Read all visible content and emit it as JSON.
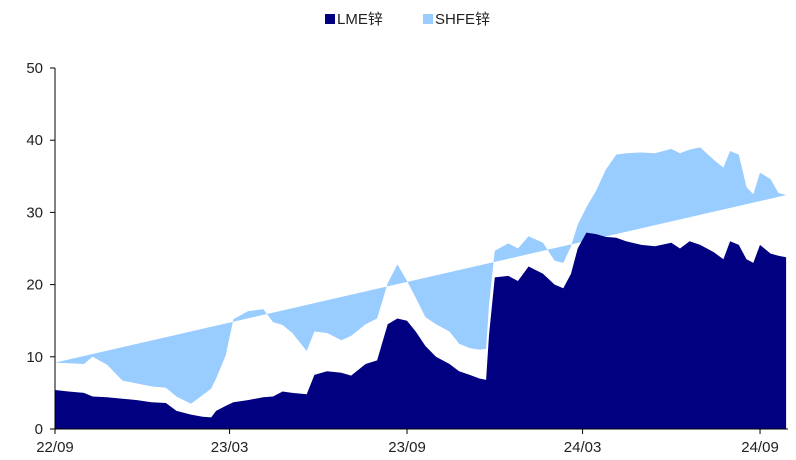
{
  "chart_data": {
    "type": "area",
    "stacked": true,
    "title": "",
    "xlabel": "",
    "ylabel": "",
    "ylim": [
      0,
      50
    ],
    "yticks": [
      0,
      10,
      20,
      30,
      40,
      50
    ],
    "xlim": [
      "2022-09-01",
      "2024-09-30"
    ],
    "xticks": [
      {
        "label": "22/09",
        "date": "2022-09-01"
      },
      {
        "label": "23/03",
        "date": "2023-03-01"
      },
      {
        "label": "23/09",
        "date": "2023-09-01"
      },
      {
        "label": "24/03",
        "date": "2024-03-01"
      },
      {
        "label": "24/09",
        "date": "2024-09-01"
      }
    ],
    "grid": false,
    "legend_position": "top-center",
    "series": [
      {
        "name": "LME锌",
        "color": "#000080",
        "points": [
          [
            "2022-09-01",
            5.4
          ],
          [
            "2022-09-15",
            5.2
          ],
          [
            "2022-10-01",
            5.0
          ],
          [
            "2022-10-10",
            4.5
          ],
          [
            "2022-10-25",
            4.4
          ],
          [
            "2022-11-10",
            4.2
          ],
          [
            "2022-11-25",
            4.0
          ],
          [
            "2022-12-10",
            3.7
          ],
          [
            "2022-12-25",
            3.6
          ],
          [
            "2023-01-05",
            2.5
          ],
          [
            "2023-01-20",
            2.0
          ],
          [
            "2023-02-01",
            1.7
          ],
          [
            "2023-02-10",
            1.6
          ],
          [
            "2023-02-15",
            2.5
          ],
          [
            "2023-02-25",
            3.2
          ],
          [
            "2023-03-05",
            3.7
          ],
          [
            "2023-03-20",
            4.0
          ],
          [
            "2023-04-05",
            4.4
          ],
          [
            "2023-04-15",
            4.5
          ],
          [
            "2023-04-25",
            5.2
          ],
          [
            "2023-05-05",
            5.0
          ],
          [
            "2023-05-20",
            4.8
          ],
          [
            "2023-05-28",
            7.5
          ],
          [
            "2023-06-10",
            8.0
          ],
          [
            "2023-06-25",
            7.8
          ],
          [
            "2023-07-05",
            7.4
          ],
          [
            "2023-07-20",
            9.0
          ],
          [
            "2023-08-01",
            9.5
          ],
          [
            "2023-08-12",
            14.5
          ],
          [
            "2023-08-22",
            15.3
          ],
          [
            "2023-09-01",
            15.0
          ],
          [
            "2023-09-10",
            13.5
          ],
          [
            "2023-09-20",
            11.5
          ],
          [
            "2023-10-01",
            10.0
          ],
          [
            "2023-10-15",
            9.0
          ],
          [
            "2023-10-25",
            8.0
          ],
          [
            "2023-11-05",
            7.5
          ],
          [
            "2023-11-15",
            7.0
          ],
          [
            "2023-11-22",
            6.8
          ],
          [
            "2023-11-25",
            13.0
          ],
          [
            "2023-12-01",
            21.0
          ],
          [
            "2023-12-15",
            21.2
          ],
          [
            "2023-12-25",
            20.5
          ],
          [
            "2024-01-05",
            22.5
          ],
          [
            "2024-01-20",
            21.5
          ],
          [
            "2024-02-01",
            20.0
          ],
          [
            "2024-02-10",
            19.5
          ],
          [
            "2024-02-18",
            21.5
          ],
          [
            "2024-02-25",
            25.0
          ],
          [
            "2024-03-05",
            27.2
          ],
          [
            "2024-03-15",
            27.0
          ],
          [
            "2024-03-25",
            26.6
          ],
          [
            "2024-04-05",
            26.5
          ],
          [
            "2024-04-15",
            26.0
          ],
          [
            "2024-05-01",
            25.5
          ],
          [
            "2024-05-15",
            25.3
          ],
          [
            "2024-06-01",
            25.8
          ],
          [
            "2024-06-10",
            25.0
          ],
          [
            "2024-06-20",
            26.0
          ],
          [
            "2024-07-01",
            25.5
          ],
          [
            "2024-07-15",
            24.5
          ],
          [
            "2024-07-25",
            23.5
          ],
          [
            "2024-08-01",
            26.0
          ],
          [
            "2024-08-10",
            25.5
          ],
          [
            "2024-08-18",
            23.5
          ],
          [
            "2024-08-25",
            23.0
          ],
          [
            "2024-09-01",
            25.5
          ],
          [
            "2024-09-12",
            24.3
          ],
          [
            "2024-09-20",
            24.0
          ],
          [
            "2024-09-28",
            23.8
          ]
        ]
      },
      {
        "name": "SHFE锌",
        "color": "#99ccff",
        "points": [
          [
            "2022-09-01",
            3.8
          ],
          [
            "2022-09-15",
            3.9
          ],
          [
            "2022-09-28",
            4.0
          ],
          [
            "2022-10-01",
            5.5
          ],
          [
            "2022-10-08",
            4.5
          ],
          [
            "2022-10-10",
            2.5
          ],
          [
            "2022-10-25",
            2.3
          ],
          [
            "2022-11-10",
            2.2
          ],
          [
            "2022-11-25",
            2.1
          ],
          [
            "2022-12-10",
            2.0
          ],
          [
            "2022-12-25",
            1.5
          ],
          [
            "2023-01-05",
            3.0
          ],
          [
            "2023-01-20",
            4.0
          ],
          [
            "2023-02-01",
            4.5
          ],
          [
            "2023-02-10",
            7.0
          ],
          [
            "2023-02-15",
            11.5
          ],
          [
            "2023-02-25",
            12.3
          ],
          [
            "2023-03-05",
            12.2
          ],
          [
            "2023-03-20",
            10.3
          ],
          [
            "2023-04-05",
            9.2
          ],
          [
            "2023-04-15",
            8.3
          ],
          [
            "2023-04-25",
            6.0
          ],
          [
            "2023-05-05",
            6.0
          ],
          [
            "2023-05-20",
            5.3
          ],
          [
            "2023-05-28",
            4.5
          ],
          [
            "2023-06-10",
            5.5
          ],
          [
            "2023-06-25",
            5.5
          ],
          [
            "2023-07-05",
            5.8
          ],
          [
            "2023-07-20",
            5.7
          ],
          [
            "2023-08-01",
            7.5
          ],
          [
            "2023-08-12",
            5.5
          ],
          [
            "2023-08-22",
            4.7
          ],
          [
            "2023-09-01",
            4.0
          ],
          [
            "2023-09-10",
            4.5
          ],
          [
            "2023-09-20",
            4.5
          ],
          [
            "2023-10-01",
            3.8
          ],
          [
            "2023-10-15",
            3.7
          ],
          [
            "2023-10-25",
            4.0
          ],
          [
            "2023-11-05",
            4.3
          ],
          [
            "2023-11-15",
            4.2
          ],
          [
            "2023-11-22",
            3.7
          ],
          [
            "2023-11-25",
            4.5
          ],
          [
            "2023-12-01",
            4.5
          ],
          [
            "2023-12-15",
            4.2
          ],
          [
            "2023-12-25",
            4.3
          ],
          [
            "2024-01-05",
            3.3
          ],
          [
            "2024-01-20",
            3.5
          ],
          [
            "2024-02-01",
            3.8
          ],
          [
            "2024-02-10",
            3.3
          ],
          [
            "2024-02-18",
            3.5
          ],
          [
            "2024-02-25",
            6.0
          ],
          [
            "2024-03-05",
            9.3
          ],
          [
            "2024-03-15",
            11.5
          ],
          [
            "2024-03-25",
            12.2
          ],
          [
            "2024-04-05",
            12.8
          ],
          [
            "2024-04-15",
            12.9
          ],
          [
            "2024-05-01",
            13.0
          ],
          [
            "2024-05-15",
            13.2
          ],
          [
            "2024-06-01",
            12.7
          ],
          [
            "2024-06-10",
            13.5
          ],
          [
            "2024-06-20",
            12.8
          ],
          [
            "2024-07-01",
            12.7
          ],
          [
            "2024-07-15",
            12.5
          ],
          [
            "2024-07-25",
            12.5
          ],
          [
            "2024-08-01",
            10.0
          ],
          [
            "2024-08-10",
            9.5
          ],
          [
            "2024-08-18",
            10.0
          ],
          [
            "2024-08-25",
            10.3
          ],
          [
            "2024-09-01",
            8.7
          ],
          [
            "2024-09-12",
            8.6
          ],
          [
            "2024-09-20",
            8.4
          ],
          [
            "2024-09-28",
            8.2
          ]
        ]
      }
    ]
  }
}
